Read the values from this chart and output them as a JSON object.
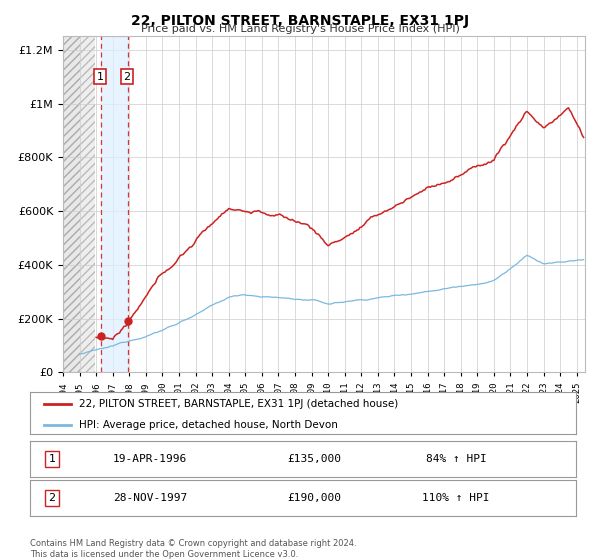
{
  "title": "22, PILTON STREET, BARNSTAPLE, EX31 1PJ",
  "subtitle": "Price paid vs. HM Land Registry's House Price Index (HPI)",
  "red_label": "22, PILTON STREET, BARNSTAPLE, EX31 1PJ (detached house)",
  "blue_label": "HPI: Average price, detached house, North Devon",
  "transaction_1_date": "19-APR-1996",
  "transaction_1_price": "£135,000",
  "transaction_1_hpi": "84% ↑ HPI",
  "transaction_1_year": 1996.29,
  "transaction_1_val": 135000,
  "transaction_2_date": "28-NOV-1997",
  "transaction_2_price": "£190,000",
  "transaction_2_hpi": "110% ↑ HPI",
  "transaction_2_year": 1997.91,
  "transaction_2_val": 190000,
  "footer_line1": "Contains HM Land Registry data © Crown copyright and database right 2024.",
  "footer_line2": "This data is licensed under the Open Government Licence v3.0.",
  "hpi_color": "#7bb8e0",
  "price_color": "#cc2222",
  "shade_color": "#ddeeff",
  "dashed_color": "#dd3333",
  "ylim": [
    0,
    1250000
  ],
  "xlim_start": 1994.0,
  "xlim_end": 2025.5,
  "hatch_end": 1995.0
}
